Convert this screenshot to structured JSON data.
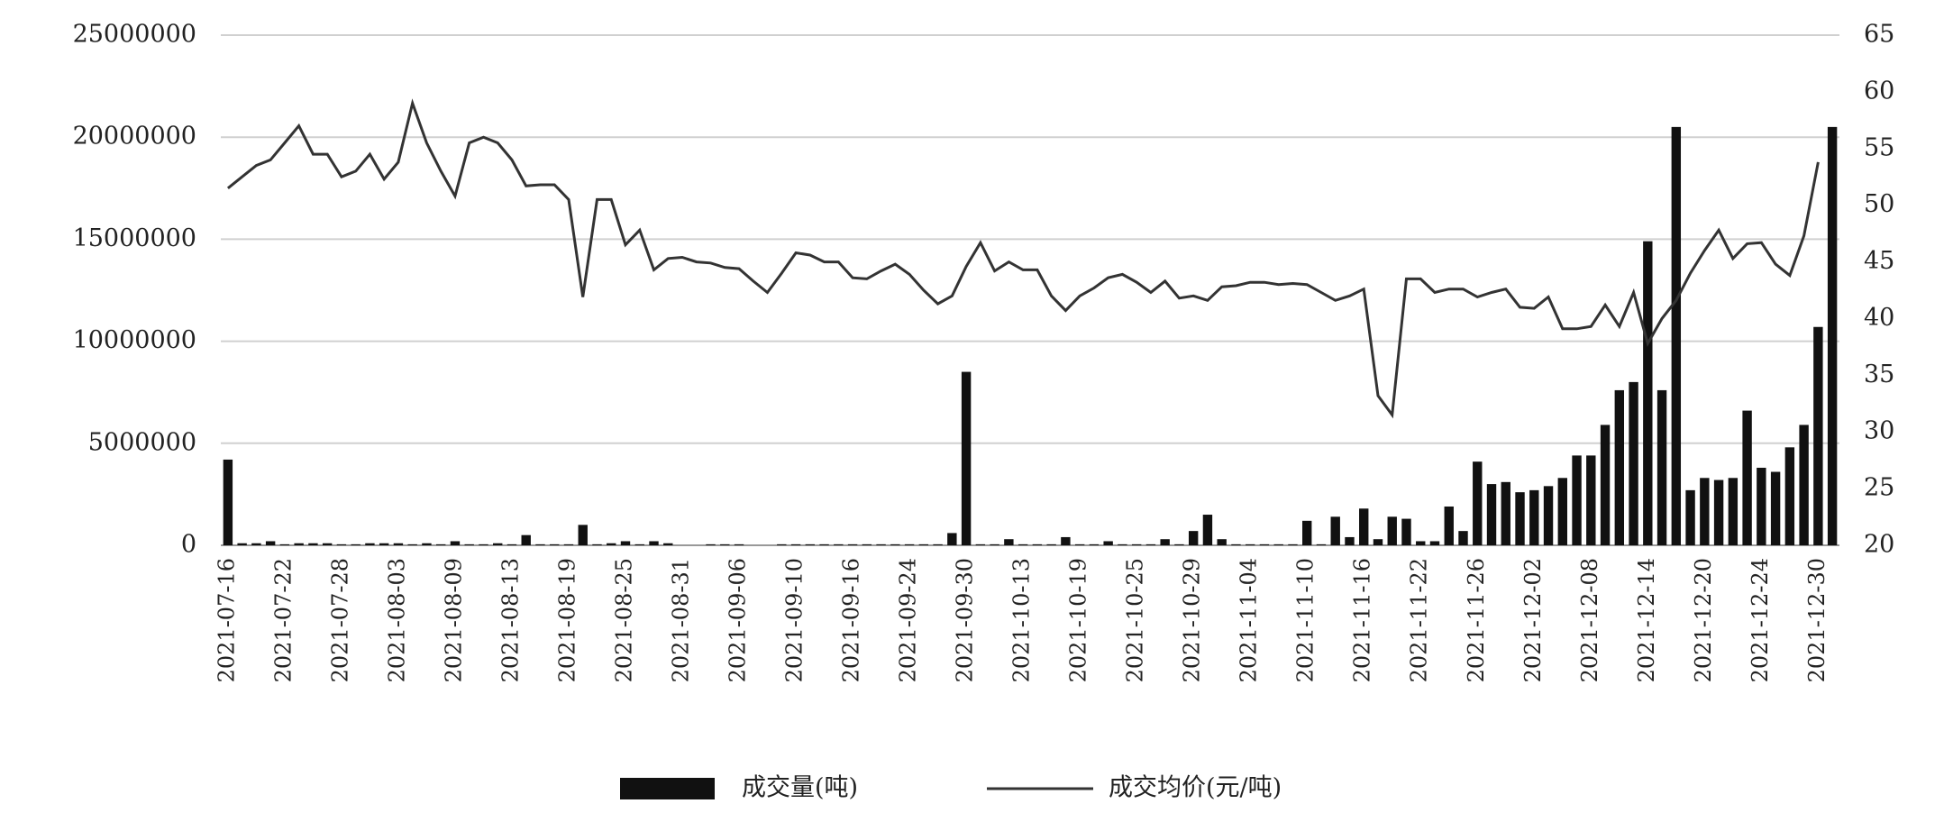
{
  "chart_data": {
    "type": "bar-line",
    "categories": [
      "2021-07-16",
      null,
      null,
      null,
      "2021-07-22",
      null,
      null,
      null,
      "2021-07-28",
      null,
      null,
      null,
      "2021-08-03",
      null,
      null,
      null,
      "2021-08-09",
      null,
      null,
      null,
      "2021-08-13",
      null,
      null,
      null,
      "2021-08-19",
      null,
      null,
      null,
      "2021-08-25",
      null,
      null,
      null,
      "2021-08-31",
      null,
      null,
      null,
      "2021-09-06",
      null,
      null,
      null,
      "2021-09-10",
      null,
      null,
      null,
      "2021-09-16",
      null,
      null,
      null,
      "2021-09-24",
      null,
      null,
      null,
      "2021-09-30",
      null,
      null,
      null,
      "2021-10-13",
      null,
      null,
      null,
      "2021-10-19",
      null,
      null,
      null,
      "2021-10-25",
      null,
      null,
      null,
      "2021-10-29",
      null,
      null,
      null,
      "2021-11-04",
      null,
      null,
      null,
      "2021-11-10",
      null,
      null,
      null,
      "2021-11-16",
      null,
      null,
      null,
      "2021-11-22",
      null,
      null,
      null,
      "2021-11-26",
      null,
      null,
      null,
      "2021-12-02",
      null,
      null,
      null,
      "2021-12-08",
      null,
      null,
      null,
      "2021-12-14",
      null,
      null,
      null,
      "2021-12-20",
      null,
      null,
      null,
      "2021-12-24",
      null,
      null,
      null,
      "2021-12-30",
      null
    ],
    "series": [
      {
        "name": "成交量(吨)",
        "color": "#111111",
        "type": "bar",
        "values": [
          4200000,
          100000,
          100000,
          200000,
          50000,
          100000,
          100000,
          100000,
          50000,
          50000,
          100000,
          100000,
          100000,
          50000,
          100000,
          50000,
          200000,
          50000,
          50000,
          100000,
          50000,
          500000,
          50000,
          50000,
          50000,
          1000000,
          50000,
          100000,
          200000,
          50000,
          200000,
          100000,
          0,
          0,
          50000,
          50000,
          50000,
          0,
          0,
          50000,
          50000,
          50000,
          50000,
          50000,
          50000,
          50000,
          50000,
          50000,
          50000,
          50000,
          50000,
          600000,
          8500000,
          50000,
          50000,
          300000,
          50000,
          50000,
          50000,
          400000,
          50000,
          50000,
          200000,
          50000,
          50000,
          50000,
          300000,
          50000,
          700000,
          1500000,
          300000,
          50000,
          50000,
          50000,
          50000,
          50000,
          1200000,
          50000,
          1400000,
          400000,
          1800000,
          300000,
          1400000,
          1300000,
          200000,
          200000,
          1900000,
          700000,
          4100000,
          3000000,
          3100000,
          2600000,
          2700000,
          2900000,
          3300000,
          4400000,
          4400000,
          5900000,
          7600000,
          8000000,
          14900000,
          7600000,
          20500000,
          2700000,
          3300000,
          3200000,
          3300000,
          6600000,
          3800000,
          3600000,
          4800000,
          5900000,
          10700000,
          20500000
        ]
      },
      {
        "name": "成交均价(元/吨)",
        "color": "#333333",
        "type": "line",
        "axis": "y2",
        "values": [
          51.5,
          52.5,
          53.5,
          54,
          55.5,
          57,
          54.5,
          54.5,
          52.5,
          53,
          54.5,
          52.3,
          53.8,
          59,
          55.5,
          53,
          50.8,
          55.5,
          56,
          55.5,
          54,
          51.7,
          51.8,
          51.8,
          50.5,
          41.9,
          50.5,
          50.5,
          46.5,
          47.8,
          44.3,
          45.3,
          45.4,
          45,
          44.9,
          44.5,
          44.4,
          43.3,
          42.3,
          44,
          45.8,
          45.6,
          45,
          45,
          43.6,
          43.5,
          44.2,
          44.8,
          43.9,
          42.5,
          41.3,
          42,
          44.6,
          46.7,
          44.2,
          45,
          44.3,
          44.3,
          42,
          40.7,
          42,
          42.7,
          43.6,
          43.9,
          43.2,
          42.3,
          43.3,
          41.8,
          42,
          41.6,
          42.8,
          42.9,
          43.2,
          43.2,
          43,
          43.1,
          43,
          42.3,
          41.6,
          42,
          42.6,
          33.2,
          31.5,
          43.5,
          43.5,
          42.3,
          42.6,
          42.6,
          41.9,
          42.3,
          42.6,
          41,
          40.9,
          41.9,
          39.1,
          39.1,
          39.3,
          41.2,
          39.3,
          42.3,
          37.8,
          40,
          41.6,
          44,
          46,
          47.8,
          45.3,
          46.6,
          46.7,
          44.8,
          43.8,
          47.3,
          53.8,
          null
        ]
      }
    ],
    "ylim": [
      0,
      25000000
    ],
    "yticks": [
      0,
      5000000,
      10000000,
      15000000,
      20000000,
      25000000
    ],
    "y2lim": [
      20,
      65
    ],
    "y2ticks": [
      20,
      25,
      30,
      35,
      40,
      45,
      50,
      55,
      60,
      65
    ],
    "grid": true
  }
}
